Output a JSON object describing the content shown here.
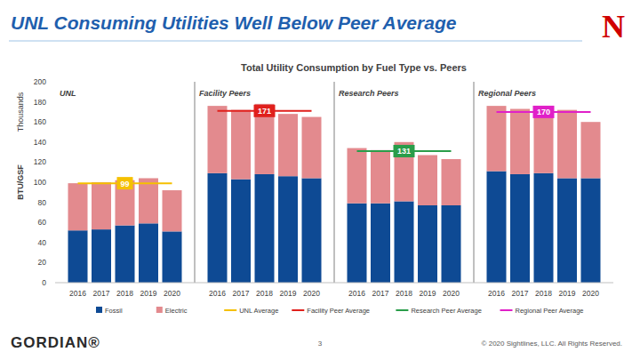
{
  "header": {
    "title": "UNL Consuming Utilities Well Below Peer Average",
    "logo": "N"
  },
  "chart_data": {
    "type": "bar",
    "stacked": true,
    "grid": false,
    "legend": "bottom",
    "title": "Total Utility Consumption by Fuel Type vs. Peers",
    "y_label": "BTU/GSF",
    "y_unit": "Thousands",
    "ylim": [
      0,
      200
    ],
    "yticks": [
      0,
      20,
      40,
      60,
      80,
      100,
      120,
      140,
      160,
      180,
      200
    ],
    "panels": [
      "UNL",
      "Facility Peers",
      "Research Peers",
      "Regional Peers"
    ],
    "categories": [
      "2016",
      "2017",
      "2018",
      "2019",
      "2020",
      "2016",
      "2017",
      "2018",
      "2019",
      "2020",
      "2016",
      "2017",
      "2018",
      "2019",
      "2020",
      "2016",
      "2017",
      "2018",
      "2019",
      "2020"
    ],
    "series": [
      {
        "name": "Fossil",
        "type": "bar",
        "color": "#0e4a94",
        "values": [
          52,
          53,
          57,
          59,
          51,
          109,
          103,
          108,
          106,
          104,
          79,
          79,
          81,
          77,
          77,
          111,
          108,
          109,
          104,
          104
        ]
      },
      {
        "name": "Electric",
        "type": "bar",
        "color": "#e38a8e",
        "values": [
          47,
          47,
          45,
          45,
          41,
          67,
          69,
          70,
          62,
          61,
          55,
          53,
          59,
          50,
          46,
          65,
          65,
          65,
          68,
          56
        ]
      },
      {
        "name": "UNL Average",
        "type": "line",
        "color": "#f5c000",
        "data_labels": true,
        "values": [
          99,
          99,
          99,
          99,
          99,
          null,
          null,
          null,
          null,
          null,
          null,
          null,
          null,
          null,
          null,
          null,
          null,
          null,
          null,
          null
        ]
      },
      {
        "name": "Facility Peer Average",
        "type": "line",
        "color": "#e0201c",
        "data_labels": true,
        "values": [
          null,
          null,
          null,
          null,
          null,
          171,
          171,
          171,
          171,
          171,
          null,
          null,
          null,
          null,
          null,
          null,
          null,
          null,
          null,
          null
        ]
      },
      {
        "name": "Research Peer Average",
        "type": "line",
        "color": "#2a9d4a",
        "data_labels": true,
        "values": [
          null,
          null,
          null,
          null,
          null,
          null,
          null,
          null,
          null,
          null,
          131,
          131,
          131,
          131,
          131,
          null,
          null,
          null,
          null,
          null
        ]
      },
      {
        "name": "Regional Peer Average",
        "type": "line",
        "color": "#e020c8",
        "data_labels": true,
        "values": [
          null,
          null,
          null,
          null,
          null,
          null,
          null,
          null,
          null,
          null,
          null,
          null,
          null,
          null,
          null,
          170,
          170,
          170,
          170,
          170
        ]
      }
    ]
  },
  "footer": {
    "brand": "GORDIAN®",
    "page": "3",
    "copyright": "© 2020 Sightlines, LLC. All Rights Reserved."
  }
}
